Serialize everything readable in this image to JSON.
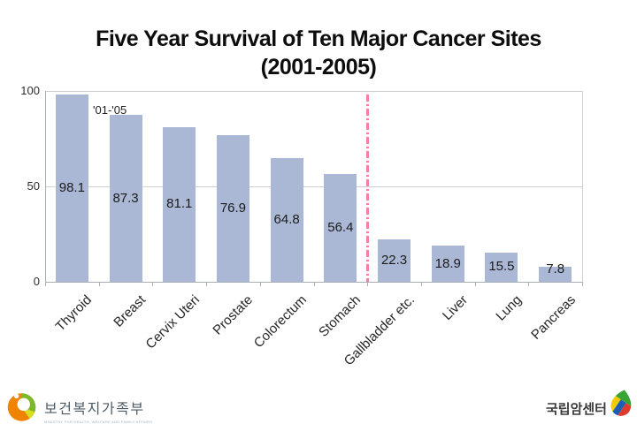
{
  "slide": {
    "title_line1": "Five Year Survival of Ten Major Cancer Sites",
    "title_line2": "(2001-2005)"
  },
  "chart_data": {
    "type": "bar",
    "title": "Five Year Survival of Ten Major Cancer Sites (2001-2005)",
    "period_label": "'01-'05",
    "categories": [
      "Thyroid",
      "Breast",
      "Cervix Uteri",
      "Prostate",
      "Colorectum",
      "Stomach",
      "Gallbladder etc.",
      "Liver",
      "Lung",
      "Pancreas"
    ],
    "values": [
      98.1,
      87.3,
      81.1,
      76.9,
      64.8,
      56.4,
      22.3,
      18.9,
      15.5,
      7.8
    ],
    "xlabel": "",
    "ylabel": "",
    "ylim": [
      0,
      100
    ],
    "yticks": [
      0,
      50,
      100
    ],
    "grid": true,
    "legend_position": "none",
    "bar_color": "#aab8d5",
    "value_label_color": "#1b1b1b",
    "divider_after_index": 5,
    "divider_color": "#f082aa"
  },
  "footer": {
    "left_logo": {
      "text": "보건복지가족부",
      "subtext": "MINISTRY FOR HEALTH, WELFARE AND FAMILY AFFAIRS",
      "colors": {
        "orange": "#f08300",
        "green": "#7cb928",
        "yellow": "#d7df23"
      }
    },
    "right_logo": {
      "text": "국립암센터",
      "colors": {
        "green": "#3aa335",
        "yellow": "#f3cc00",
        "blue": "#1d5eb5",
        "red": "#df3a2e"
      }
    }
  }
}
